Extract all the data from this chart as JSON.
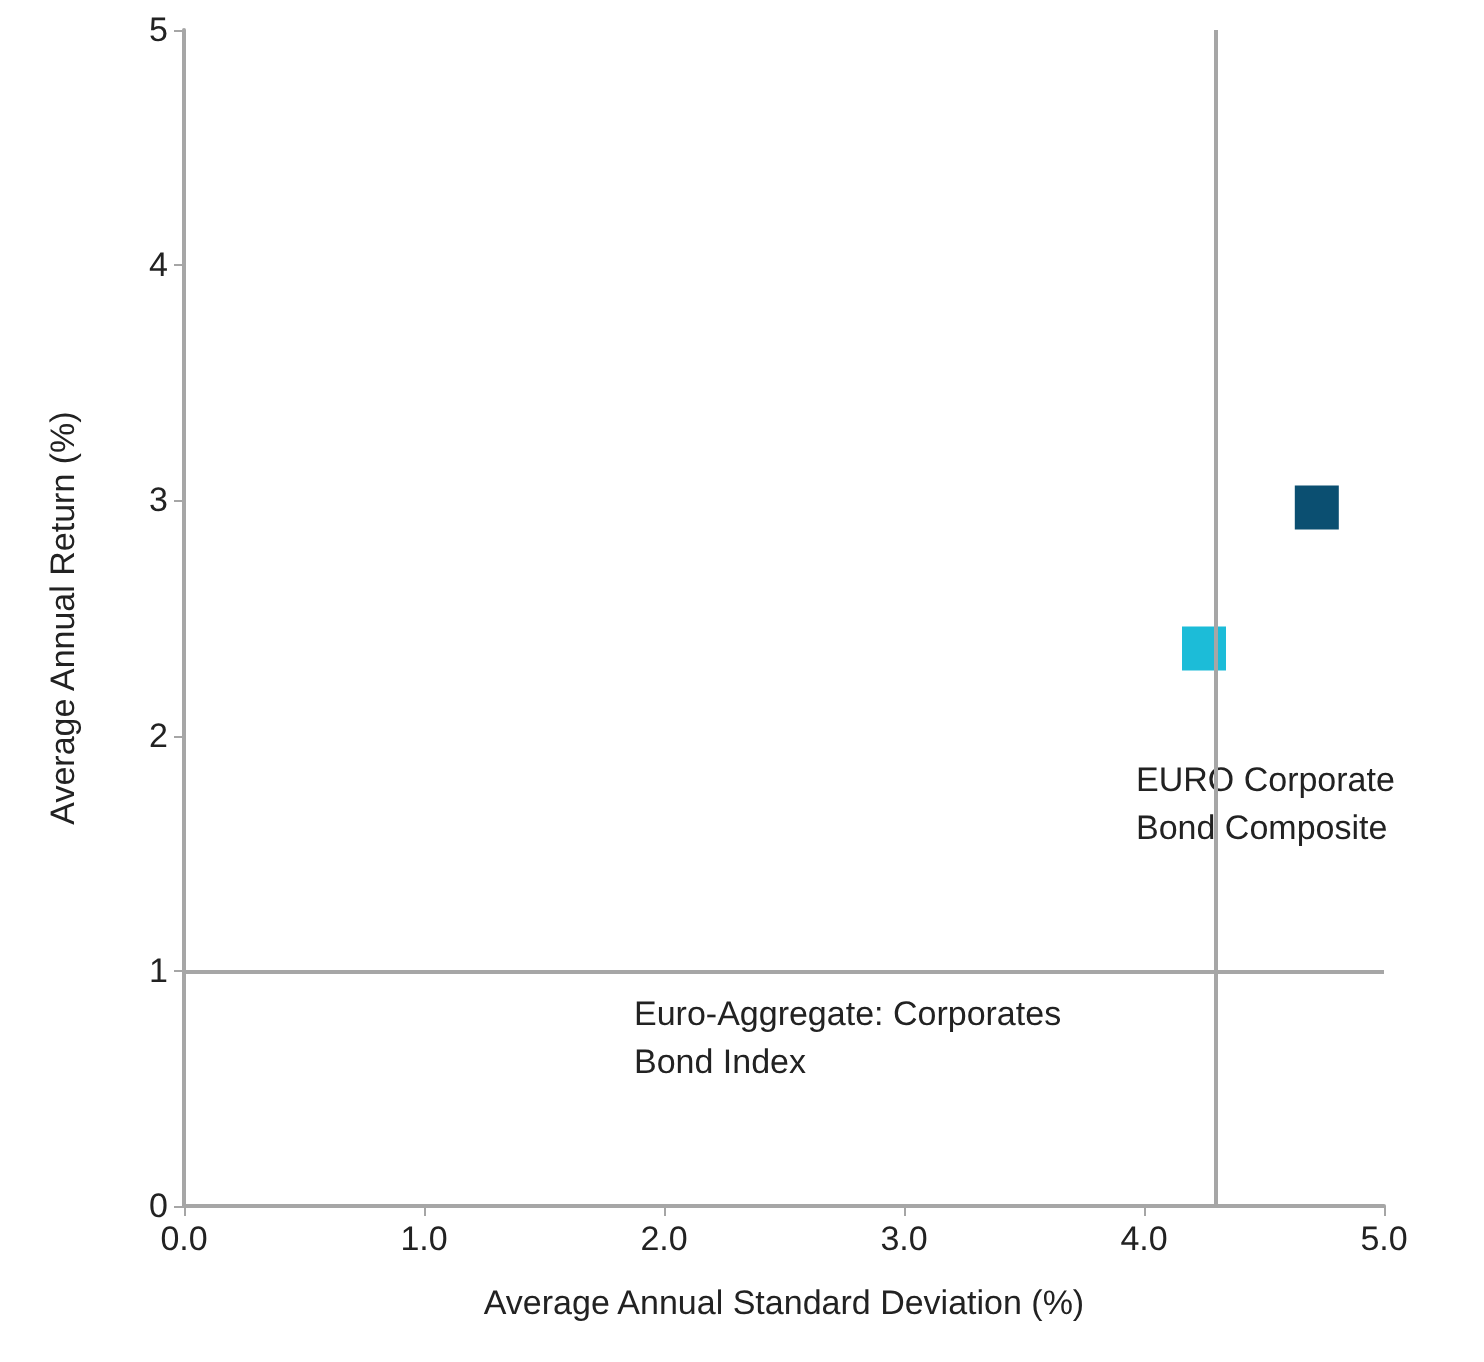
{
  "chart_data": {
    "type": "scatter",
    "xlabel": "Average Annual Standard Deviation (%)",
    "ylabel": "Average Annual Return (%)",
    "xlim": [
      0,
      5
    ],
    "xticks": [
      {
        "value": 0,
        "label": "0.0"
      },
      {
        "value": 1,
        "label": "1.0"
      },
      {
        "value": 2,
        "label": "2.0"
      },
      {
        "value": 3,
        "label": "3.0"
      },
      {
        "value": 4,
        "label": "4.0"
      },
      {
        "value": 5,
        "label": "5.0"
      }
    ],
    "ylim": [
      0,
      5
    ],
    "yticks": [
      0,
      1,
      2,
      3,
      4,
      5
    ],
    "grid": false,
    "marker": "square",
    "series": [
      {
        "color": "#0b4f71",
        "x": [
          4.72
        ],
        "values": [
          2.97
        ]
      },
      {
        "color": "#1cbcd8",
        "x": [
          4.25
        ],
        "values": [
          2.37
        ]
      }
    ],
    "ref_lines": [
      {
        "axis": "x",
        "value": 4.3,
        "color": "#a6a6a6"
      },
      {
        "axis": "y",
        "value": 1,
        "color": "#a6a6a6"
      }
    ],
    "annotations": [
      "EURO Corporate\nBond Composite",
      "Euro-Aggregate: Corporates\nBond Index"
    ]
  }
}
